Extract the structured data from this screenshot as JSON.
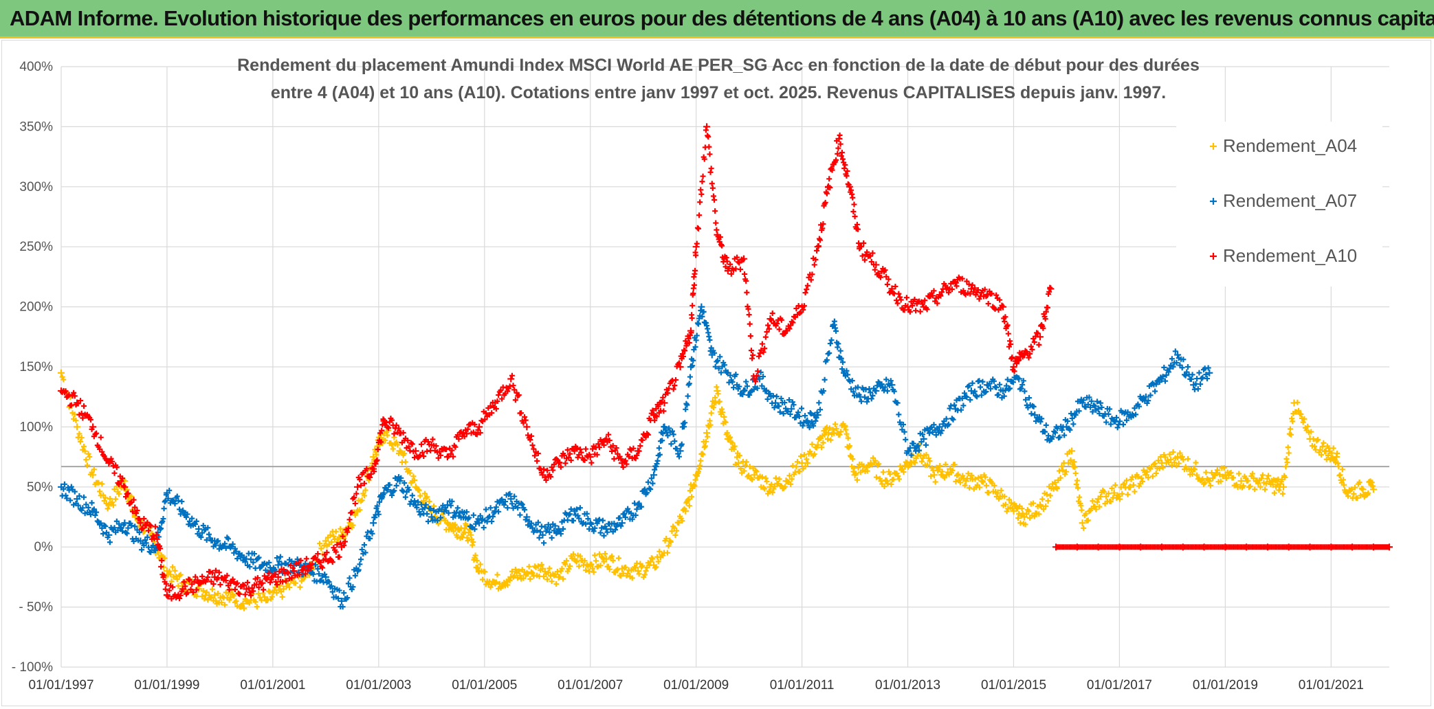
{
  "banner": {
    "title": "ADAM Informe. Evolution historique des performances en euros pour des détentions de 4 ans (A04) à 10 ans (A10) avec les revenus connus capitalisés"
  },
  "chart_data": {
    "type": "scatter",
    "title_lines": [
      "Rendement du placement Amundi Index MSCI World AE PER_SG Acc en fonction de la date de début pour des durées",
      "entre 4 (A04) et 10 ans (A10). Cotations entre janv 1997 et oct. 2025. Revenus CAPITALISES depuis janv. 1997."
    ],
    "xlabel": "",
    "ylabel": "",
    "x_range": [
      1997.0,
      2022.1
    ],
    "ylim": [
      -100,
      400
    ],
    "y_ticks": [
      400,
      350,
      300,
      250,
      200,
      150,
      100,
      50,
      0,
      -50,
      -100
    ],
    "y_tick_labels": [
      "400%",
      "350%",
      "300%",
      "250%",
      "200%",
      "150%",
      "100%",
      "50%",
      "0%",
      "- 50%",
      "- 100%"
    ],
    "x_ticks": [
      1997,
      1999,
      2001,
      2003,
      2005,
      2007,
      2009,
      2011,
      2013,
      2015,
      2017,
      2019,
      2021
    ],
    "x_tick_labels": [
      "01/01/1997",
      "01/01/1999",
      "01/01/2001",
      "01/01/2003",
      "01/01/2005",
      "01/01/2007",
      "01/01/2009",
      "01/01/2011",
      "01/01/2013",
      "01/01/2015",
      "01/01/2017",
      "01/01/2019",
      "01/01/2021"
    ],
    "reference_line_y": 67,
    "marker": "+",
    "legend_position": "right",
    "series": [
      {
        "name": "Rendement_A04",
        "color": "#ffc000",
        "x": [
          1997.0,
          1997.3,
          1997.6,
          1997.9,
          1998.2,
          1998.4,
          1998.7,
          1999.0,
          1999.3,
          1999.6,
          1999.9,
          2000.2,
          2000.5,
          2000.9,
          2001.2,
          2001.6,
          2002.0,
          2002.3,
          2002.6,
          2002.9,
          2003.1,
          2003.4,
          2003.7,
          2004.0,
          2004.3,
          2004.5,
          2004.7,
          2004.9,
          2005.2,
          2005.5,
          2005.8,
          2006.1,
          2006.4,
          2006.7,
          2007.0,
          2007.3,
          2007.6,
          2007.9,
          2008.2,
          2008.5,
          2008.8,
          2009.0,
          2009.2,
          2009.4,
          2009.6,
          2009.8,
          2010.1,
          2010.4,
          2010.7,
          2011.0,
          2011.3,
          2011.5,
          2011.8,
          2012.0,
          2012.3,
          2012.6,
          2012.9,
          2013.2,
          2013.5,
          2013.8,
          2014.1,
          2014.4,
          2014.7,
          2015.0,
          2015.2,
          2015.5,
          2015.8,
          2016.1,
          2016.3,
          2016.6,
          2016.9,
          2017.2,
          2017.5,
          2017.8,
          2018.1,
          2018.4,
          2018.7,
          2019.0,
          2019.3,
          2019.6,
          2019.9,
          2020.1,
          2020.3,
          2020.6,
          2020.9,
          2021.1,
          2021.3,
          2021.6,
          2021.8
        ],
        "values": [
          145,
          100,
          60,
          35,
          55,
          25,
          10,
          -20,
          -30,
          -35,
          -40,
          -42,
          -45,
          -44,
          -35,
          -25,
          5,
          10,
          30,
          75,
          95,
          80,
          50,
          30,
          20,
          15,
          12,
          -20,
          -30,
          -25,
          -22,
          -18,
          -25,
          -10,
          -15,
          -10,
          -18,
          -20,
          -15,
          5,
          30,
          60,
          95,
          130,
          90,
          70,
          60,
          50,
          55,
          70,
          85,
          95,
          100,
          60,
          70,
          55,
          65,
          80,
          60,
          65,
          55,
          55,
          45,
          30,
          25,
          35,
          50,
          80,
          20,
          40,
          45,
          50,
          60,
          70,
          75,
          65,
          55,
          60,
          55,
          55,
          52,
          50,
          120,
          90,
          80,
          75,
          45,
          48,
          48
        ]
      },
      {
        "name": "Rendement_A07",
        "color": "#0070c0",
        "x": [
          1997.0,
          1997.3,
          1997.6,
          1997.9,
          1998.2,
          1998.5,
          1998.8,
          1999.0,
          1999.3,
          1999.6,
          1999.9,
          2000.2,
          2000.5,
          2000.8,
          2001.1,
          2001.4,
          2001.7,
          2002.0,
          2002.3,
          2002.6,
          2002.9,
          2003.1,
          2003.4,
          2003.7,
          2004.0,
          2004.3,
          2004.6,
          2004.9,
          2005.2,
          2005.5,
          2005.8,
          2006.1,
          2006.4,
          2006.7,
          2007.0,
          2007.3,
          2007.6,
          2007.9,
          2008.2,
          2008.4,
          2008.7,
          2008.9,
          2009.1,
          2009.3,
          2009.6,
          2009.9,
          2010.2,
          2010.5,
          2010.8,
          2011.1,
          2011.3,
          2011.6,
          2011.8,
          2012.1,
          2012.4,
          2012.7,
          2013.0,
          2013.3,
          2013.6,
          2013.9,
          2014.2,
          2014.5,
          2014.8,
          2015.1,
          2015.4,
          2015.7,
          2016.0,
          2016.3,
          2016.6,
          2016.9,
          2017.2,
          2017.5,
          2017.8,
          2018.1,
          2018.4,
          2018.7
        ],
        "values": [
          50,
          40,
          30,
          10,
          20,
          5,
          0,
          45,
          30,
          15,
          5,
          0,
          -10,
          -15,
          -15,
          -15,
          -20,
          -25,
          -45,
          -20,
          20,
          45,
          55,
          35,
          25,
          35,
          25,
          20,
          30,
          40,
          25,
          10,
          15,
          30,
          20,
          15,
          20,
          35,
          60,
          100,
          80,
          150,
          200,
          160,
          145,
          130,
          140,
          120,
          115,
          105,
          110,
          185,
          145,
          125,
          130,
          135,
          80,
          90,
          100,
          115,
          130,
          135,
          130,
          140,
          110,
          90,
          100,
          120,
          115,
          105,
          110,
          125,
          140,
          160,
          135,
          145
        ]
      },
      {
        "name": "Rendement_A10",
        "color": "#ff0000",
        "x": [
          1997.0,
          1997.3,
          1997.6,
          1997.9,
          1998.2,
          1998.5,
          1998.8,
          1999.0,
          1999.3,
          1999.6,
          1999.9,
          2000.2,
          2000.5,
          2000.8,
          2001.1,
          2001.4,
          2001.7,
          2002.0,
          2002.3,
          2002.6,
          2002.9,
          2003.1,
          2003.4,
          2003.7,
          2004.0,
          2004.3,
          2004.6,
          2004.9,
          2005.2,
          2005.5,
          2005.8,
          2006.1,
          2006.4,
          2006.7,
          2007.0,
          2007.3,
          2007.6,
          2007.9,
          2008.2,
          2008.4,
          2008.7,
          2008.9,
          2009.0,
          2009.2,
          2009.4,
          2009.6,
          2009.9,
          2010.1,
          2010.4,
          2010.7,
          2011.0,
          2011.3,
          2011.5,
          2011.7,
          2011.9,
          2012.1,
          2012.4,
          2012.7,
          2013.0,
          2013.3,
          2013.6,
          2013.9,
          2014.2,
          2014.5,
          2014.8,
          2015.0,
          2015.2,
          2015.5,
          2015.7
        ],
        "values": [
          130,
          120,
          100,
          70,
          50,
          20,
          10,
          -40,
          -35,
          -30,
          -25,
          -30,
          -35,
          -30,
          -25,
          -20,
          -15,
          -10,
          0,
          50,
          65,
          105,
          95,
          80,
          85,
          75,
          95,
          100,
          120,
          140,
          100,
          60,
          70,
          80,
          75,
          90,
          70,
          80,
          110,
          120,
          150,
          180,
          250,
          350,
          260,
          230,
          240,
          140,
          190,
          180,
          200,
          250,
          300,
          340,
          300,
          250,
          235,
          215,
          200,
          200,
          210,
          220,
          215,
          210,
          200,
          150,
          160,
          175,
          215
        ]
      },
      {
        "name": "Rendement_A10",
        "color": "#ff0000",
        "x": [
          2015.8,
          2016.2,
          2016.6,
          2017.0,
          2017.4,
          2017.8,
          2018.2,
          2018.6,
          2019.0,
          2019.4,
          2019.8,
          2020.2,
          2020.6,
          2021.0,
          2021.4,
          2021.8,
          2022.1
        ],
        "values": [
          0,
          0,
          0,
          0,
          0,
          0,
          0,
          0,
          0,
          0,
          0,
          0,
          0,
          0,
          0,
          0,
          0
        ]
      }
    ]
  },
  "legend": {
    "items": [
      {
        "label": "Rendement_A04",
        "color": "#ffc000"
      },
      {
        "label": "Rendement_A07",
        "color": "#0070c0"
      },
      {
        "label": "Rendement_A10",
        "color": "#ff0000"
      }
    ]
  }
}
